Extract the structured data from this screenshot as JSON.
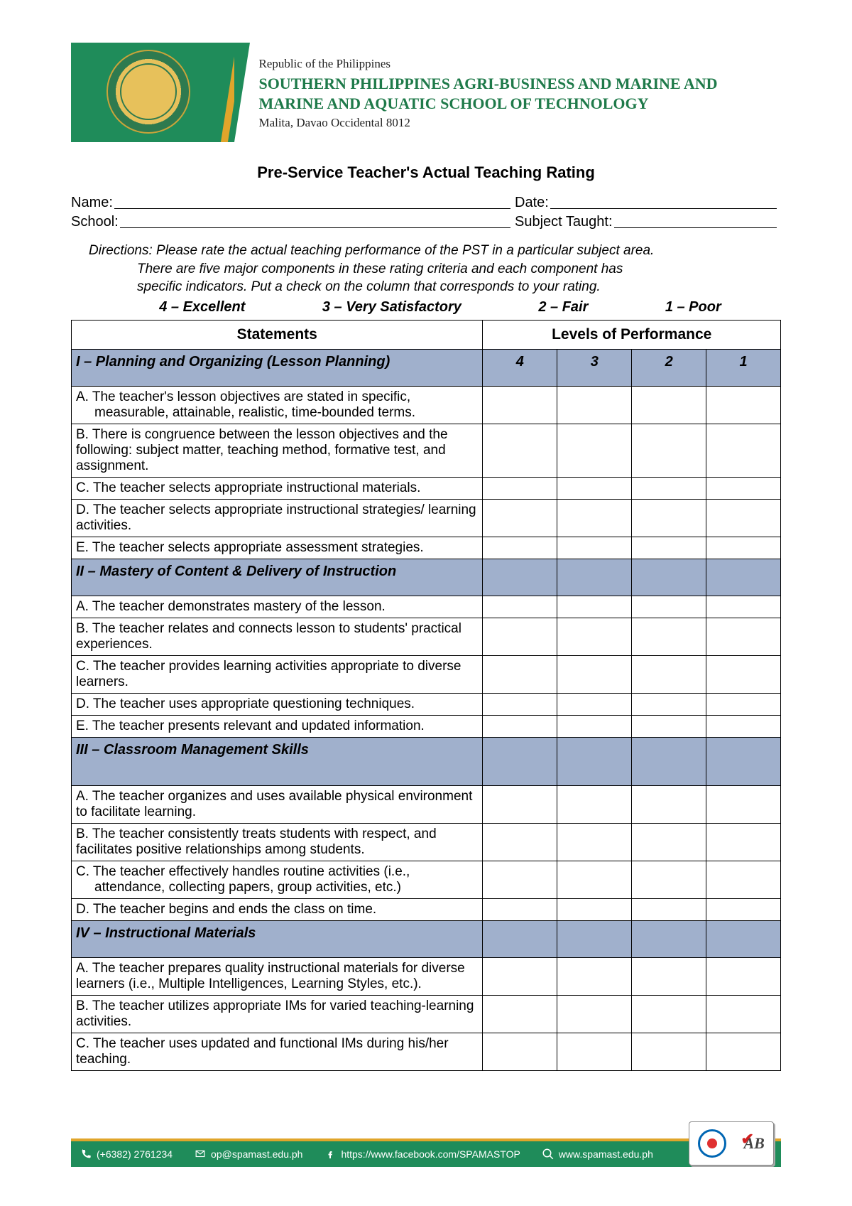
{
  "header": {
    "republic": "Republic of the Philippines",
    "school_name": "SOUTHERN PHILIPPINES AGRI-BUSINESS AND MARINE AND MARINE AND AQUATIC SCHOOL OF TECHNOLOGY",
    "address": "Malita, Davao Occidental 8012",
    "logo_bg": "#1f8c5a",
    "accent": "#e0a52b"
  },
  "title": "Pre-Service Teacher's Actual Teaching Rating",
  "fields": {
    "name_label": "Name:",
    "date_label": "Date:",
    "school_label": "School:",
    "subject_label": "Subject Taught:"
  },
  "directions": {
    "line1": "Directions: Please rate the actual teaching performance of the PST in a particular subject area.",
    "line2": "There are five major components in these rating criteria and each component has",
    "line3": "specific indicators. Put a check on the column that corresponds to your rating."
  },
  "legend": {
    "l4": "4 – Excellent",
    "l3": "3 –  Very Satisfactory",
    "l2": "2 – Fair",
    "l1": "1 – Poor"
  },
  "table": {
    "head_statements": "Statements",
    "head_levels": "Levels of Performance",
    "col4": "4",
    "col3": "3",
    "col2": "2",
    "col1": "1",
    "section_bg": "#a0b0cc",
    "sections": [
      {
        "title": "I – Planning and Organizing (Lesson Planning)",
        "show_nums": true,
        "items": [
          "A. The teacher's lesson objectives are stated in specific,\n    measurable, attainable, realistic, time-bounded terms.",
          "B. There is congruence between the lesson objectives and the following: subject matter, teaching method, formative test, and assignment.",
          "C. The teacher selects appropriate instructional materials.",
          "D. The teacher selects appropriate instructional strategies/ learning activities.",
          "E. The teacher selects appropriate assessment strategies."
        ]
      },
      {
        "title": "II – Mastery of Content & Delivery of Instruction",
        "show_nums": false,
        "items": [
          "A. The teacher demonstrates mastery of the lesson.",
          "B. The teacher relates and connects lesson to students' practical experiences.",
          "C. The teacher provides learning activities appropriate to diverse learners.",
          "D. The teacher uses appropriate questioning techniques.",
          "E. The teacher presents relevant and updated information."
        ]
      },
      {
        "title": "III – Classroom Management Skills",
        "show_nums": false,
        "tall": true,
        "items": [
          "A. The teacher organizes and uses available physical environment to facilitate learning.",
          "B. The teacher consistently treats students with respect, and facilitates positive relationships among students.",
          "C. The teacher effectively handles routine activities (i.e.,\n    attendance, collecting papers, group activities, etc.)",
          "D. The teacher begins and ends the class on time."
        ]
      },
      {
        "title": "IV – Instructional Materials",
        "show_nums": false,
        "items": [
          "A. The teacher prepares quality instructional materials for diverse learners (i.e., Multiple Intelligences, Learning Styles, etc.).",
          "B. The teacher utilizes appropriate IMs for varied teaching-learning activities.",
          "C. The teacher uses updated and functional IMs during his/her teaching."
        ]
      }
    ]
  },
  "footer": {
    "phone": "(+6382) 2761234",
    "email": "op@spamast.edu.ph",
    "facebook": "https://www.facebook.com/SPAMASTOP",
    "website": "www.spamast.edu.ph",
    "bar_color": "#1f8c5a",
    "stripe_color": "#e0a52b"
  }
}
